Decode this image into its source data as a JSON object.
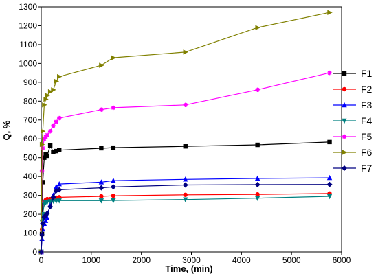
{
  "chart_data": {
    "type": "line",
    "xlabel": "Time, (min)",
    "ylabel": "Q, %",
    "xlim": [
      0,
      6000
    ],
    "ylim": [
      0,
      1300
    ],
    "xticks": [
      0,
      1000,
      2000,
      3000,
      4000,
      5000,
      6000
    ],
    "yticks": [
      0,
      100,
      200,
      300,
      400,
      500,
      600,
      700,
      800,
      900,
      1000,
      1100,
      1200,
      1300
    ],
    "grid": false,
    "legend_position": "right",
    "series": [
      {
        "name": "F1",
        "color": "#000000",
        "marker": "square",
        "x": [
          0,
          15,
          30,
          60,
          90,
          120,
          180,
          240,
          300,
          360,
          1200,
          1440,
          2880,
          4320,
          5760
        ],
        "y": [
          0,
          95,
          370,
          500,
          520,
          510,
          565,
          530,
          535,
          540,
          550,
          553,
          560,
          568,
          583
        ]
      },
      {
        "name": "F2",
        "color": "#ff0000",
        "marker": "circle",
        "x": [
          0,
          15,
          30,
          60,
          90,
          120,
          180,
          240,
          300,
          360,
          1200,
          1440,
          2880,
          4320,
          5760
        ],
        "y": [
          0,
          120,
          200,
          265,
          275,
          280,
          280,
          285,
          288,
          290,
          295,
          298,
          303,
          305,
          310
        ]
      },
      {
        "name": "F3",
        "color": "#0000ff",
        "marker": "triangle-up",
        "x": [
          0,
          15,
          30,
          60,
          90,
          120,
          180,
          240,
          300,
          360,
          1200,
          1440,
          2880,
          4320,
          5760
        ],
        "y": [
          0,
          70,
          120,
          150,
          165,
          180,
          250,
          300,
          345,
          360,
          370,
          378,
          385,
          390,
          393
        ]
      },
      {
        "name": "F4",
        "color": "#008080",
        "marker": "triangle-down",
        "x": [
          0,
          15,
          30,
          60,
          90,
          120,
          180,
          240,
          300,
          360,
          1200,
          1440,
          2880,
          4320,
          5760
        ],
        "y": [
          0,
          160,
          200,
          255,
          262,
          265,
          268,
          270,
          270,
          272,
          272,
          273,
          278,
          285,
          295
        ]
      },
      {
        "name": "F5",
        "color": "#ff00ff",
        "marker": "star",
        "x": [
          0,
          15,
          30,
          60,
          90,
          120,
          180,
          240,
          300,
          360,
          1200,
          1440,
          2880,
          4320,
          5760
        ],
        "y": [
          0,
          430,
          550,
          600,
          610,
          620,
          640,
          670,
          690,
          710,
          755,
          765,
          780,
          860,
          950
        ]
      },
      {
        "name": "F6",
        "color": "#808000",
        "marker": "triangle-right",
        "x": [
          0,
          15,
          30,
          60,
          90,
          120,
          180,
          240,
          300,
          360,
          1200,
          1440,
          2880,
          4320,
          5760
        ],
        "y": [
          0,
          570,
          640,
          780,
          810,
          830,
          850,
          860,
          905,
          930,
          990,
          1030,
          1060,
          1190,
          1270
        ]
      },
      {
        "name": "F7",
        "color": "#000080",
        "marker": "diamond",
        "x": [
          0,
          15,
          30,
          60,
          90,
          120,
          180,
          240,
          300,
          360,
          1200,
          1440,
          2880,
          4320,
          5760
        ],
        "y": [
          0,
          90,
          150,
          185,
          195,
          205,
          240,
          290,
          325,
          330,
          340,
          345,
          355,
          357,
          358
        ]
      }
    ]
  }
}
